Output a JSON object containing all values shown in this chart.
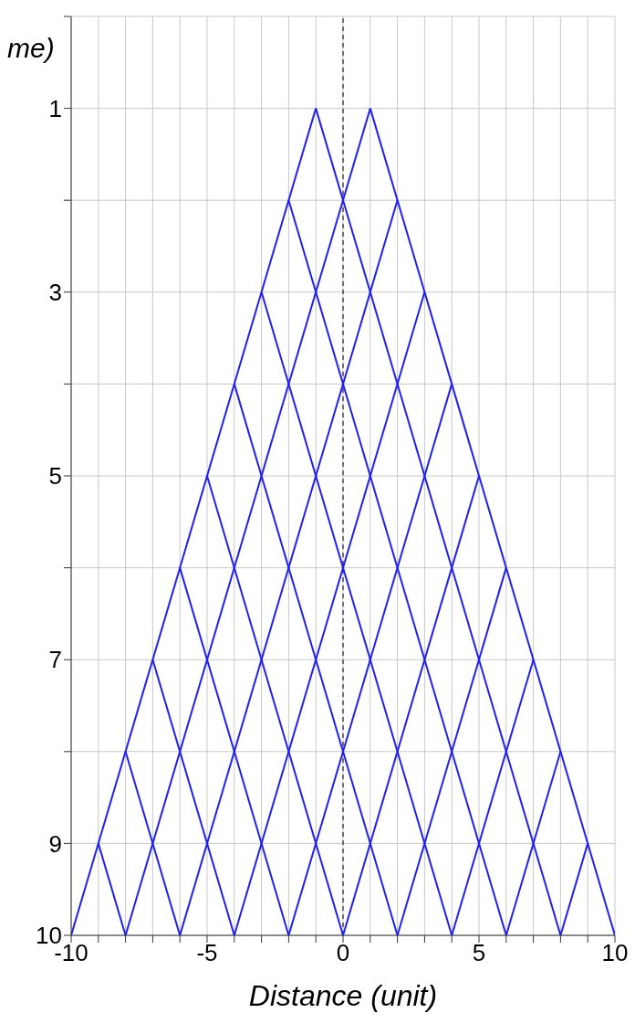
{
  "chart_data": {
    "type": "line",
    "ylabel": "me)",
    "xlabel": "Distance (unit)",
    "xlim": [
      -10,
      10
    ],
    "xticks": [
      -10,
      {
        "value": -9,
        "label": null
      },
      {
        "value": -8,
        "label": null
      },
      {
        "value": -7,
        "label": null
      },
      {
        "value": -6,
        "label": null
      },
      -5,
      {
        "value": -4,
        "label": null
      },
      {
        "value": -3,
        "label": null
      },
      {
        "value": -2,
        "label": null
      },
      {
        "value": -1,
        "label": null
      },
      0,
      {
        "value": 1,
        "label": null
      },
      {
        "value": 2,
        "label": null
      },
      {
        "value": 3,
        "label": null
      },
      {
        "value": 4,
        "label": null
      },
      5,
      {
        "value": 6,
        "label": null
      },
      {
        "value": 7,
        "label": null
      },
      {
        "value": 8,
        "label": null
      },
      {
        "value": 9,
        "label": null
      },
      10
    ],
    "ylim": [
      10,
      0
    ],
    "yticks": [
      {
        "value": 0,
        "label": null
      },
      1,
      {
        "value": 2,
        "label": null
      },
      3,
      {
        "value": 4,
        "label": null
      },
      5,
      {
        "value": 6,
        "label": null
      },
      7,
      {
        "value": 8,
        "label": null
      },
      9,
      10
    ],
    "grid": true,
    "marker": "none",
    "line_style": "solid",
    "ref_lines": [
      {
        "axis": "x",
        "value": 0,
        "label": null,
        "color": "#000000",
        "line_style": "dashed"
      }
    ],
    "series": [
      {
        "color": "#2020f0",
        "x": [
          -1,
          -10
        ],
        "values": [
          1,
          10
        ]
      },
      {
        "color": "#2020f0",
        "x": [
          1,
          -8
        ],
        "values": [
          1,
          10
        ]
      },
      {
        "color": "#2020f0",
        "x": [
          2,
          -6
        ],
        "values": [
          2,
          10
        ]
      },
      {
        "color": "#2020f0",
        "x": [
          3,
          -4
        ],
        "values": [
          3,
          10
        ]
      },
      {
        "color": "#2020f0",
        "x": [
          4,
          -2
        ],
        "values": [
          4,
          10
        ]
      },
      {
        "color": "#2020f0",
        "x": [
          5,
          0
        ],
        "values": [
          5,
          10
        ]
      },
      {
        "color": "#2020f0",
        "x": [
          6,
          2
        ],
        "values": [
          6,
          10
        ]
      },
      {
        "color": "#2020f0",
        "x": [
          7,
          4
        ],
        "values": [
          7,
          10
        ]
      },
      {
        "color": "#2020f0",
        "x": [
          8,
          6
        ],
        "values": [
          8,
          10
        ]
      },
      {
        "color": "#2020f0",
        "x": [
          9,
          8
        ],
        "values": [
          9,
          10
        ]
      },
      {
        "color": "#2020f0",
        "x": [
          1,
          10
        ],
        "values": [
          1,
          10
        ]
      },
      {
        "color": "#2020f0",
        "x": [
          -1,
          8
        ],
        "values": [
          1,
          10
        ]
      },
      {
        "color": "#2020f0",
        "x": [
          -2,
          6
        ],
        "values": [
          2,
          10
        ]
      },
      {
        "color": "#2020f0",
        "x": [
          -3,
          4
        ],
        "values": [
          3,
          10
        ]
      },
      {
        "color": "#2020f0",
        "x": [
          -4,
          2
        ],
        "values": [
          4,
          10
        ]
      },
      {
        "color": "#2020f0",
        "x": [
          -5,
          0
        ],
        "values": [
          5,
          10
        ]
      },
      {
        "color": "#2020f0",
        "x": [
          -6,
          -2
        ],
        "values": [
          6,
          10
        ]
      },
      {
        "color": "#2020f0",
        "x": [
          -7,
          -4
        ],
        "values": [
          7,
          10
        ]
      },
      {
        "color": "#2020f0",
        "x": [
          -8,
          -6
        ],
        "values": [
          8,
          10
        ]
      },
      {
        "color": "#2020f0",
        "x": [
          -9,
          -8
        ],
        "values": [
          9,
          10
        ]
      }
    ]
  }
}
